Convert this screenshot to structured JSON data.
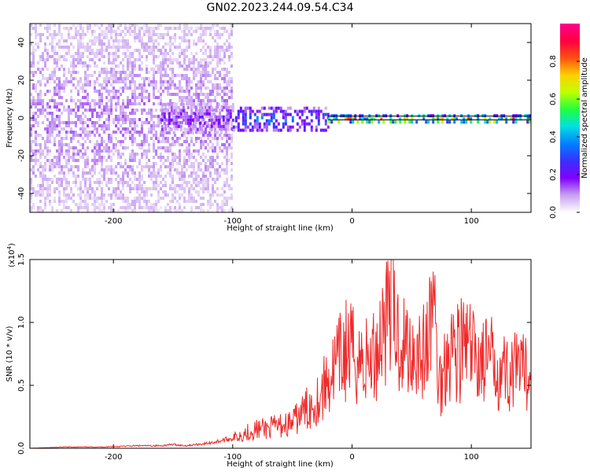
{
  "title": "GN02.2023.244.09.54.C34",
  "colors": {
    "snr_line": "#ee2b2b",
    "zero_line": "#000000",
    "background": "#ffffff"
  },
  "chart_data": [
    {
      "type": "heatmap",
      "ylabel": "Frequency (Hz)",
      "xlabel": "Height of straight line (km)",
      "xlim": [
        -270,
        150
      ],
      "ylim": [
        -50,
        50
      ],
      "x_ticks": [
        -200,
        -100,
        0,
        100
      ],
      "x_tick_labels": [
        "-200",
        "-100",
        "0",
        "100"
      ],
      "y_ticks": [
        -40,
        -20,
        0,
        20,
        40
      ],
      "y_tick_labels": [
        "-40",
        "-20",
        "0",
        "20",
        "40"
      ],
      "colorbar": {
        "label": "Normalized spectral amplitude",
        "range": [
          0.0,
          1.0
        ],
        "ticks": [
          0.0,
          0.2,
          0.4,
          0.6,
          0.8
        ],
        "tick_labels": [
          "0.0",
          "0.2",
          "0.4",
          "0.6",
          "0.8"
        ],
        "colormap": [
          "#ffffff",
          "#c8a0f0",
          "#7f00ff",
          "#3a30ff",
          "#0080ff",
          "#00e0e0",
          "#20ff40",
          "#c0ff00",
          "#ffd000",
          "#ff5010",
          "#ff0040",
          "#ff0090"
        ]
      },
      "regions": [
        {
          "x": [
            -270,
            -100
          ],
          "freq_halfwidth": 50,
          "intensity": 0.12,
          "description_free": true
        },
        {
          "x": [
            -160,
            -100
          ],
          "freq_halfwidth": 8,
          "intensity": 0.2
        },
        {
          "x": [
            -100,
            -20
          ],
          "freq_halfwidth": 6,
          "intensity": 0.35
        },
        {
          "x": [
            -20,
            150
          ],
          "freq_halfwidth": 2,
          "intensity": 0.85
        }
      ],
      "grid": false
    },
    {
      "type": "line",
      "ylabel": "SNR (10 * v/v)",
      "y_multiplier_label": "(x10",
      "y_multiplier_exp": "4",
      "y_multiplier_close": ")",
      "xlabel": "Height of straight line (km)",
      "xlim": [
        -270,
        150
      ],
      "ylim": [
        0.0,
        1.5
      ],
      "x_ticks": [
        -200,
        -100,
        0,
        100
      ],
      "x_tick_labels": [
        "-200",
        "-100",
        "0",
        "100"
      ],
      "y_ticks": [
        0.0,
        0.5,
        1.0,
        1.5
      ],
      "y_tick_labels": [
        "0.0",
        "0.5",
        "1.0",
        "1.5"
      ],
      "series": [
        {
          "x": [
            -270,
            -240,
            -210,
            -180,
            -160,
            -150,
            -140,
            -120,
            -110,
            -100,
            -90,
            -80,
            -70,
            -60,
            -50,
            -45,
            -40,
            -35,
            -30,
            -25,
            -20,
            -15,
            -10,
            -5,
            0,
            5,
            10,
            15,
            20,
            25,
            28,
            30,
            33,
            35,
            38,
            42,
            45,
            50,
            55,
            60,
            65,
            68,
            70,
            72,
            75,
            78,
            80,
            85,
            90,
            95,
            100,
            110,
            120,
            130,
            140,
            150
          ],
          "y": [
            0.0,
            0.01,
            0.01,
            0.02,
            0.02,
            0.03,
            0.02,
            0.04,
            0.06,
            0.08,
            0.12,
            0.15,
            0.16,
            0.18,
            0.2,
            0.25,
            0.3,
            0.33,
            0.38,
            0.45,
            0.55,
            0.62,
            0.7,
            0.78,
            0.75,
            0.72,
            0.68,
            0.7,
            0.75,
            0.95,
            1.1,
            1.05,
            1.5,
            1.0,
            0.9,
            0.85,
            0.82,
            0.78,
            0.8,
            0.75,
            0.9,
            1.3,
            0.9,
            0.6,
            0.5,
            0.7,
            0.82,
            0.8,
            0.78,
            0.82,
            0.75,
            0.7,
            0.68,
            0.6,
            0.6,
            0.58
          ]
        }
      ],
      "grid": false
    }
  ]
}
